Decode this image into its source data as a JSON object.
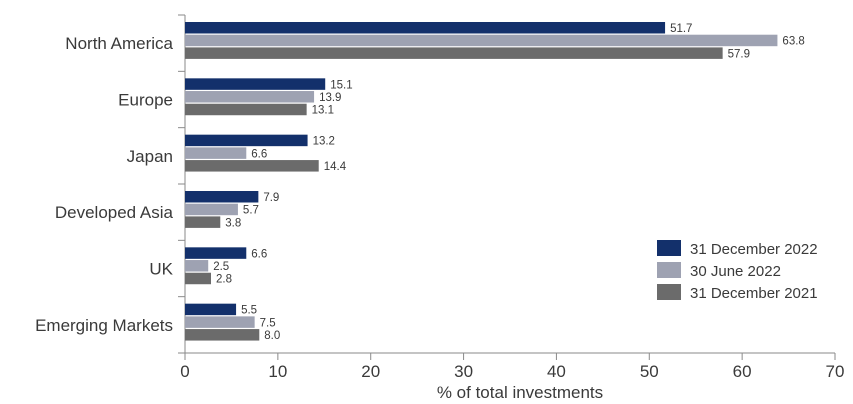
{
  "chart_data": {
    "type": "bar",
    "orientation": "horizontal",
    "categories": [
      "North America",
      "Europe",
      "Japan",
      "Developed Asia",
      "UK",
      "Emerging Markets"
    ],
    "series": [
      {
        "name": "31 December 2022",
        "color": "#13306b",
        "values": [
          51.7,
          15.1,
          13.2,
          7.9,
          6.6,
          5.5
        ]
      },
      {
        "name": "30 June 2022",
        "color": "#9ea2b2",
        "values": [
          63.8,
          13.9,
          6.6,
          5.7,
          2.5,
          7.5
        ]
      },
      {
        "name": "31 December 2021",
        "color": "#6b6b6b",
        "values": [
          57.9,
          13.1,
          14.4,
          3.8,
          2.8,
          8.0
        ]
      }
    ],
    "data_labels": [
      [
        "51.7",
        "15.1",
        "13.2",
        "7.9",
        "6.6",
        "5.5"
      ],
      [
        "63.8",
        "13.9",
        "6.6",
        "5.7",
        "2.5",
        "7.5"
      ],
      [
        "57.9",
        "13.1",
        "14.4",
        "3.8",
        "2.8",
        "8.0"
      ]
    ],
    "xlabel": "% of total investments",
    "ylabel": "",
    "xlim": [
      0,
      70
    ],
    "xticks": [
      "0",
      "10",
      "20",
      "30",
      "40",
      "50",
      "60",
      "70"
    ],
    "grid": false,
    "legend_position": "bottom-right"
  }
}
